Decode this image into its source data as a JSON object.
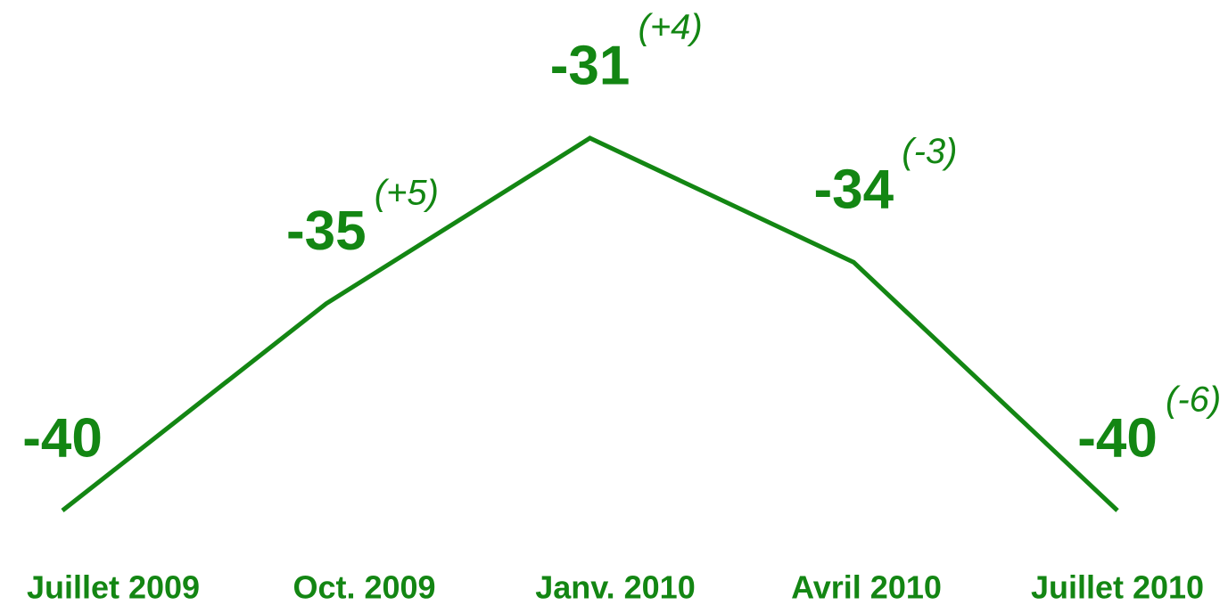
{
  "chart_data": {
    "type": "line",
    "categories": [
      "Juillet 2009",
      "Oct. 2009",
      "Janv. 2010",
      "Avril 2010",
      "Juillet 2010"
    ],
    "series": [
      {
        "color": "#138613",
        "values": [
          -40,
          -35,
          -31,
          -34,
          -40
        ]
      }
    ],
    "change_labels": [
      null,
      "(+5)",
      "(+4)",
      "(-3)",
      "(-6)"
    ]
  }
}
